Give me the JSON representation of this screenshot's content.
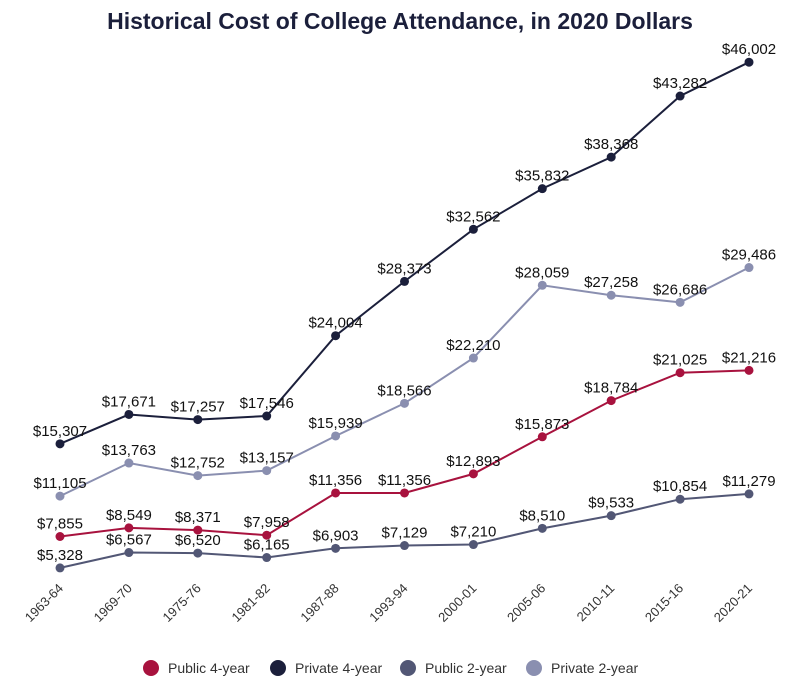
{
  "chart_data": {
    "type": "line",
    "title": "Historical Cost of College Attendance, in 2020 Dollars",
    "xlabel": "",
    "ylabel": "",
    "grid": false,
    "legend_position": "bottom",
    "categories": [
      "1963-64",
      "1969-70",
      "1975-76",
      "1981-82",
      "1987-88",
      "1993-94",
      "2000-01",
      "2005-06",
      "2010-11",
      "2015-16",
      "2020-21"
    ],
    "ylim": [
      5000,
      46500
    ],
    "series": [
      {
        "name": "Public 4-year",
        "color": "#a8123e",
        "values": [
          7855,
          8549,
          8371,
          7958,
          11356,
          11356,
          12893,
          15873,
          18784,
          21025,
          21216
        ],
        "labels": [
          "$7,855",
          "$8,549",
          "$8,371",
          "$7,958",
          "$11,356",
          "$11,356",
          "$12,893",
          "$15,873",
          "$18,784",
          "$21,025",
          "$21,216"
        ]
      },
      {
        "name": "Private 4-year",
        "color": "#1b1f3b",
        "values": [
          15307,
          17671,
          17257,
          17546,
          24004,
          28373,
          32562,
          35832,
          38368,
          43282,
          46002
        ],
        "labels": [
          "$15,307",
          "$17,671",
          "$17,257",
          "$17,546",
          "$24,004",
          "$28,373",
          "$32,562",
          "$35,832",
          "$38,368",
          "$43,282",
          "$46,002"
        ]
      },
      {
        "name": "Public 2-year",
        "color": "#525775",
        "values": [
          5328,
          6567,
          6520,
          6165,
          6903,
          7129,
          7210,
          8510,
          9533,
          10854,
          11279
        ],
        "labels": [
          "$5,328",
          "$6,567",
          "$6,520",
          "$6,165",
          "$6,903",
          "$7,129",
          "$7,210",
          "$8,510",
          "$9,533",
          "$10,854",
          "$11,279"
        ]
      },
      {
        "name": "Private 2-year",
        "color": "#8a8fb0",
        "values": [
          11105,
          13763,
          12752,
          13157,
          15939,
          18566,
          22210,
          28059,
          27258,
          26686,
          29486
        ],
        "labels": [
          "$11,105",
          "$13,763",
          "$12,752",
          "$13,157",
          "$15,939",
          "$18,566",
          "$22,210",
          "$28,059",
          "$27,258",
          "$26,686",
          "$29,486"
        ]
      }
    ]
  }
}
